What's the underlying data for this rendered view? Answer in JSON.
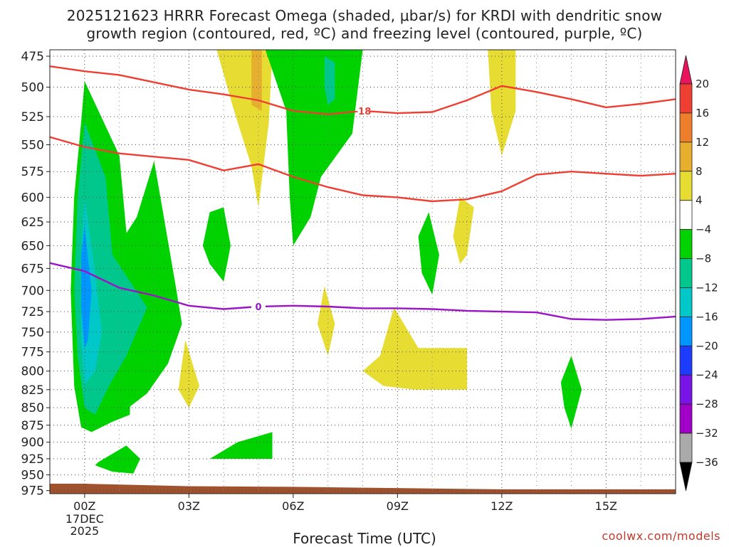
{
  "chart_data": {
    "type": "contour",
    "title_line1": "2025121623 HRRR Forecast Omega (shaded, μbar/s) for KRDI with dendritic snow",
    "title_line2": "growth region (contoured, red, ºC) and freezing level (contoured, purple, ºC)",
    "xlabel": "Forecast Time (UTC)",
    "ylabel": "",
    "x_ticks": [
      "00Z",
      "03Z",
      "06Z",
      "09Z",
      "12Z",
      "15Z"
    ],
    "x_tick_hours": [
      0,
      3,
      6,
      9,
      12,
      15
    ],
    "x_date_lines": [
      "17DEC",
      "2025"
    ],
    "xlim_hours": [
      -1,
      17
    ],
    "y_ticks": [
      475,
      500,
      525,
      550,
      575,
      600,
      625,
      650,
      675,
      700,
      725,
      750,
      775,
      800,
      825,
      850,
      875,
      900,
      925,
      950,
      975
    ],
    "ylim": [
      470,
      980
    ],
    "y_scale": "log-pressure",
    "grid": true,
    "colorbar": {
      "labels": [
        "20",
        "16",
        "12",
        "8",
        "4",
        "−4",
        "−8",
        "−12",
        "−16",
        "−20",
        "−24",
        "−28",
        "−32",
        "−36"
      ],
      "colors": [
        "#e8145c",
        "#ef3e32",
        "#ef7e2c",
        "#e6b02e",
        "#e6dc32",
        "#ffffff",
        "#00d200",
        "#00c88c",
        "#00c8c8",
        "#0096ff",
        "#1e3cff",
        "#7814e6",
        "#a000c8",
        "#aaaaaa",
        "#000000"
      ]
    },
    "contours": [
      {
        "color": "#ef3e32",
        "label": "-18",
        "points": [
          [
            -1,
            483
          ],
          [
            0,
            487
          ],
          [
            1,
            490
          ],
          [
            2,
            496
          ],
          [
            3,
            502
          ],
          [
            4,
            506
          ],
          [
            5,
            511
          ],
          [
            6,
            520
          ],
          [
            7,
            523
          ],
          [
            8,
            520
          ],
          [
            9,
            522
          ],
          [
            10,
            521
          ],
          [
            11,
            511
          ],
          [
            12,
            499
          ],
          [
            13,
            504
          ],
          [
            14,
            510
          ],
          [
            15,
            517
          ],
          [
            16,
            514
          ],
          [
            17,
            510
          ]
        ]
      },
      {
        "color": "#ef3e32",
        "label": "",
        "points": [
          [
            -1,
            543
          ],
          [
            0,
            552
          ],
          [
            1,
            558
          ],
          [
            2,
            561
          ],
          [
            3,
            564
          ],
          [
            4,
            574
          ],
          [
            5,
            568
          ],
          [
            6,
            580
          ],
          [
            7,
            590
          ],
          [
            8,
            598
          ],
          [
            9,
            600
          ],
          [
            10,
            604
          ],
          [
            11,
            602
          ],
          [
            12,
            594
          ],
          [
            13,
            578
          ],
          [
            14,
            575
          ],
          [
            15,
            577
          ],
          [
            16,
            579
          ],
          [
            17,
            577
          ]
        ]
      },
      {
        "color": "#9b14c8",
        "label": "0",
        "points": [
          [
            -1,
            669
          ],
          [
            0,
            678
          ],
          [
            1,
            697
          ],
          [
            2,
            706
          ],
          [
            3,
            718
          ],
          [
            4,
            722
          ],
          [
            5,
            719
          ],
          [
            6,
            718
          ],
          [
            7,
            719
          ],
          [
            8,
            721
          ],
          [
            9,
            721
          ],
          [
            10,
            722
          ],
          [
            11,
            724
          ],
          [
            12,
            725
          ],
          [
            13,
            726
          ],
          [
            14,
            734
          ],
          [
            15,
            735
          ],
          [
            16,
            734
          ],
          [
            17,
            731
          ]
        ]
      }
    ],
    "omega_regions": [
      {
        "value": -6,
        "color": "#00d200",
        "points": [
          [
            0,
            495
          ],
          [
            1.0,
            560
          ],
          [
            1.4,
            720
          ],
          [
            1.3,
            860
          ],
          [
            0.8,
            870
          ],
          [
            0.2,
            885
          ],
          [
            -0.1,
            878
          ],
          [
            -0.3,
            820
          ],
          [
            -0.4,
            700
          ],
          [
            -0.3,
            600
          ],
          [
            -0.1,
            530
          ]
        ]
      },
      {
        "value": -6,
        "color": "#00d200",
        "points": [
          [
            0.8,
            660
          ],
          [
            1.5,
            620
          ],
          [
            2.0,
            565
          ],
          [
            2.6,
            690
          ],
          [
            2.8,
            740
          ],
          [
            2.4,
            790
          ],
          [
            1.8,
            830
          ],
          [
            1.0,
            860
          ],
          [
            0.8,
            760
          ]
        ]
      },
      {
        "value": -10,
        "color": "#00c88c",
        "points": [
          [
            0,
            530
          ],
          [
            0.6,
            580
          ],
          [
            0.8,
            660
          ],
          [
            1.8,
            720
          ],
          [
            1.2,
            780
          ],
          [
            0.7,
            820
          ],
          [
            0.3,
            860
          ],
          [
            0,
            850
          ],
          [
            -0.2,
            780
          ],
          [
            -0.3,
            700
          ],
          [
            -0.2,
            600
          ]
        ]
      },
      {
        "value": -14,
        "color": "#00c8c8",
        "points": [
          [
            0,
            600
          ],
          [
            0.3,
            680
          ],
          [
            0.5,
            750
          ],
          [
            0.3,
            800
          ],
          [
            0,
            818
          ],
          [
            -0.1,
            760
          ],
          [
            -0.1,
            660
          ]
        ]
      },
      {
        "value": -18,
        "color": "#0096ff",
        "points": [
          [
            0,
            630
          ],
          [
            0.2,
            700
          ],
          [
            0.1,
            760
          ],
          [
            0,
            770
          ],
          [
            -0.1,
            720
          ],
          [
            -0.1,
            660
          ]
        ]
      },
      {
        "value": -6,
        "color": "#00d200",
        "points": [
          [
            0.4,
            930
          ],
          [
            1.2,
            905
          ],
          [
            1.6,
            925
          ],
          [
            1.4,
            948
          ],
          [
            0.8,
            945
          ],
          [
            0.3,
            935
          ]
        ]
      },
      {
        "value": -6,
        "color": "#00d200",
        "points": [
          [
            4.0,
            610
          ],
          [
            4.2,
            650
          ],
          [
            4.0,
            690
          ],
          [
            3.6,
            670
          ],
          [
            3.4,
            650
          ],
          [
            3.6,
            615
          ]
        ]
      },
      {
        "value": -6,
        "color": "#00d200",
        "points": [
          [
            3.6,
            925
          ],
          [
            4.4,
            900
          ],
          [
            5.4,
            885
          ],
          [
            5.4,
            925
          ],
          [
            4.2,
            925
          ]
        ]
      },
      {
        "value": -6,
        "color": "#00d200",
        "points": [
          [
            5.2,
            470
          ],
          [
            8.0,
            470
          ],
          [
            7.7,
            540
          ],
          [
            6.8,
            580
          ],
          [
            6.5,
            620
          ],
          [
            6.0,
            650
          ],
          [
            5.9,
            600
          ],
          [
            5.8,
            520
          ]
        ]
      },
      {
        "value": -10,
        "color": "#00c88c",
        "points": [
          [
            6.9,
            475
          ],
          [
            7.2,
            480
          ],
          [
            7.2,
            510
          ],
          [
            7.0,
            515
          ],
          [
            6.9,
            500
          ]
        ]
      },
      {
        "value": -6,
        "color": "#00d200",
        "points": [
          [
            9.9,
            615
          ],
          [
            10.2,
            660
          ],
          [
            10.0,
            705
          ],
          [
            9.7,
            680
          ],
          [
            9.6,
            640
          ]
        ]
      },
      {
        "value": -6,
        "color": "#00d200",
        "points": [
          [
            14.0,
            780
          ],
          [
            14.3,
            825
          ],
          [
            14.0,
            880
          ],
          [
            13.8,
            850
          ],
          [
            13.7,
            815
          ]
        ]
      }
    ],
    "omega_positive_regions": [
      {
        "value": 6,
        "color": "#e6dc32",
        "points": [
          [
            3.8,
            470
          ],
          [
            5.4,
            470
          ],
          [
            5.3,
            530
          ],
          [
            5.0,
            610
          ],
          [
            4.8,
            570
          ],
          [
            4.3,
            520
          ]
        ]
      },
      {
        "value": 10,
        "color": "#e6b02e",
        "points": [
          [
            4.8,
            470
          ],
          [
            5.1,
            470
          ],
          [
            5.1,
            520
          ],
          [
            4.8,
            515
          ]
        ]
      },
      {
        "value": 6,
        "color": "#e6dc32",
        "points": [
          [
            11.6,
            470
          ],
          [
            12.4,
            470
          ],
          [
            12.4,
            520
          ],
          [
            12.0,
            560
          ],
          [
            11.7,
            520
          ]
        ]
      },
      {
        "value": 6,
        "color": "#e6dc32",
        "points": [
          [
            10.8,
            600
          ],
          [
            11.2,
            610
          ],
          [
            11.0,
            660
          ],
          [
            10.8,
            670
          ],
          [
            10.6,
            640
          ]
        ]
      },
      {
        "value": 6,
        "color": "#e6dc32",
        "points": [
          [
            6.9,
            695
          ],
          [
            7.2,
            740
          ],
          [
            7.0,
            780
          ],
          [
            6.7,
            740
          ]
        ]
      },
      {
        "value": 6,
        "color": "#e6dc32",
        "points": [
          [
            8.9,
            720
          ],
          [
            9.6,
            770
          ],
          [
            11.0,
            770
          ],
          [
            11.0,
            825
          ],
          [
            9.5,
            825
          ],
          [
            8.6,
            820
          ],
          [
            8.0,
            800
          ],
          [
            8.5,
            780
          ]
        ]
      },
      {
        "value": 6,
        "color": "#e6dc32",
        "points": [
          [
            2.9,
            760
          ],
          [
            3.3,
            820
          ],
          [
            3.0,
            850
          ],
          [
            2.7,
            825
          ],
          [
            2.8,
            790
          ]
        ]
      }
    ],
    "terrain": {
      "color": "#a0522d",
      "points": [
        [
          -1,
          964
        ],
        [
          0,
          964
        ],
        [
          3,
          968
        ],
        [
          6,
          969
        ],
        [
          9,
          971
        ],
        [
          12,
          973
        ],
        [
          17,
          973
        ]
      ]
    }
  },
  "watermark": "coolwx.com/models"
}
